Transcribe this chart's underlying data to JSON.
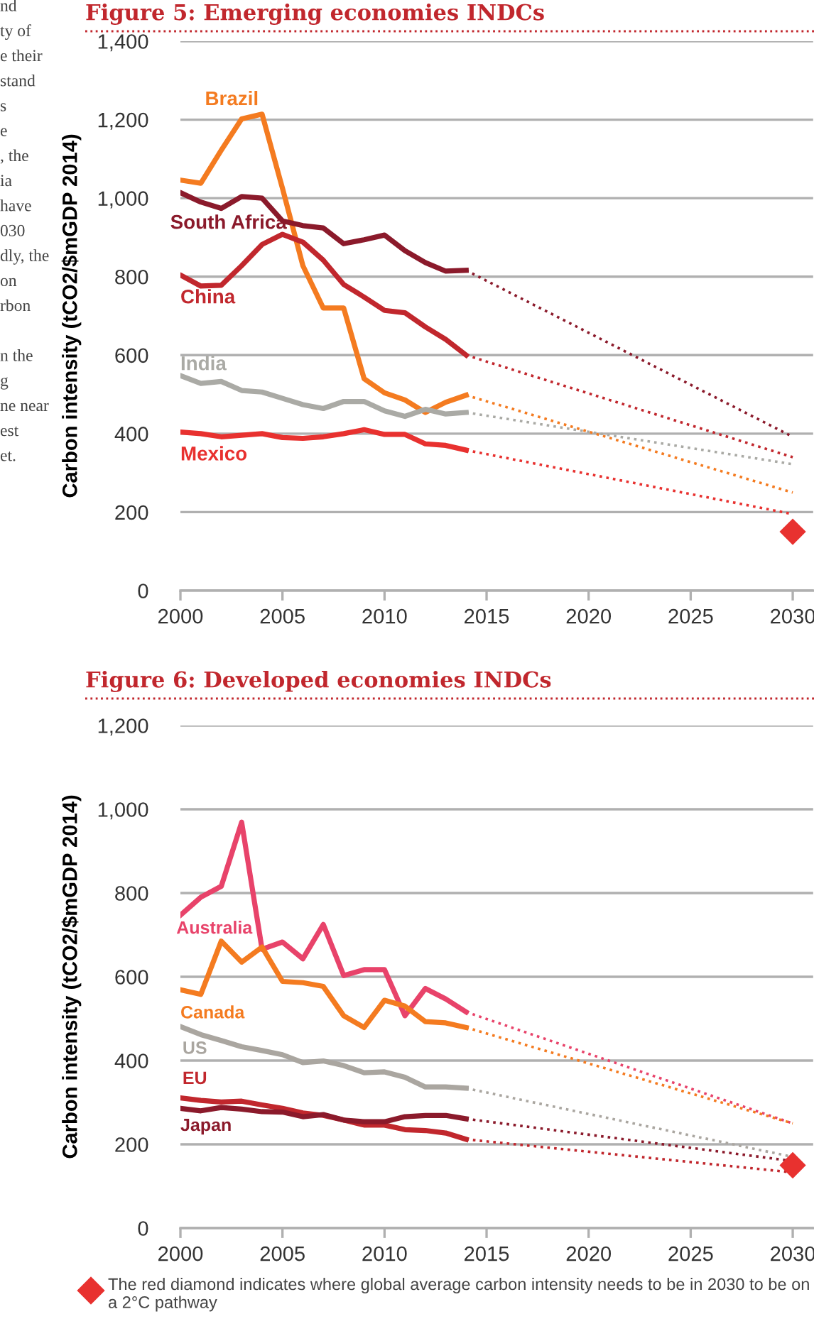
{
  "chart_data": [
    {
      "type": "line",
      "title": "Figure 5: Emerging economies INDCs",
      "ylabel": "Carbon intensity (tCO2/$mGDP 2014)",
      "x": [
        2000,
        2001,
        2002,
        2003,
        2004,
        2005,
        2006,
        2007,
        2008,
        2009,
        2010,
        2011,
        2012,
        2013,
        2014,
        2030
      ],
      "xlim": [
        2000,
        2031
      ],
      "xticks": [
        2000,
        2005,
        2010,
        2015,
        2020,
        2025,
        2030
      ],
      "ylim": [
        0,
        1400
      ],
      "yticks": [
        0,
        200,
        400,
        600,
        800,
        {
          "value": 1000,
          "label": "1,000"
        },
        {
          "value": 1200,
          "label": "1,200"
        },
        {
          "value": 1400,
          "label": "1,400"
        }
      ],
      "grid": "y",
      "legend": false,
      "line_style": "solid",
      "series": [
        {
          "name": "Brazil",
          "color": "#f47b20",
          "values": [
            1046,
            1038,
            1122,
            1202,
            1214,
            1025,
            828,
            720,
            720,
            540,
            504,
            486,
            454,
            480,
            498,
            null
          ]
        },
        {
          "name": "South Africa",
          "color": "#8b1a2b",
          "values": [
            1014,
            990,
            974,
            1004,
            1000,
            942,
            930,
            924,
            884,
            894,
            906,
            866,
            836,
            814,
            816,
            null
          ]
        },
        {
          "name": "China",
          "color": "#c1272d",
          "values": [
            804,
            776,
            778,
            828,
            882,
            908,
            888,
            842,
            780,
            748,
            714,
            708,
            672,
            640,
            600,
            null
          ]
        },
        {
          "name": "India",
          "color": "#aaaaa5",
          "values": [
            548,
            528,
            533,
            510,
            506,
            490,
            474,
            464,
            482,
            482,
            458,
            444,
            462,
            450,
            454,
            null
          ]
        },
        {
          "name": "Mexico",
          "color": "#e8312f",
          "values": [
            404,
            400,
            392,
            396,
            400,
            390,
            388,
            392,
            400,
            410,
            398,
            398,
            374,
            370,
            358,
            null
          ]
        },
        {
          "color": "#f47b20",
          "line_style": "dotted",
          "values": [
            null,
            null,
            null,
            null,
            null,
            null,
            null,
            null,
            null,
            null,
            null,
            null,
            null,
            null,
            498,
            250
          ]
        },
        {
          "color": "#8b1a2b",
          "line_style": "dotted",
          "values": [
            null,
            null,
            null,
            null,
            null,
            null,
            null,
            null,
            null,
            null,
            null,
            null,
            null,
            null,
            816,
            392
          ]
        },
        {
          "color": "#c1272d",
          "line_style": "dotted",
          "values": [
            null,
            null,
            null,
            null,
            null,
            null,
            null,
            null,
            null,
            null,
            null,
            null,
            null,
            null,
            600,
            340
          ]
        },
        {
          "color": "#aaaaa5",
          "line_style": "dotted",
          "values": [
            null,
            null,
            null,
            null,
            null,
            null,
            null,
            null,
            null,
            null,
            null,
            null,
            null,
            null,
            454,
            322
          ]
        },
        {
          "color": "#e8312f",
          "line_style": "dotted",
          "values": [
            null,
            null,
            null,
            null,
            null,
            null,
            null,
            null,
            null,
            null,
            null,
            null,
            null,
            null,
            358,
            195
          ]
        },
        {
          "type": "scatter",
          "marker": "diamond",
          "color": "#e8312f",
          "values": [
            null,
            null,
            null,
            null,
            null,
            null,
            null,
            null,
            null,
            null,
            null,
            null,
            null,
            null,
            null,
            150
          ]
        }
      ],
      "annotations": [
        "nd",
        "ty of",
        "e their",
        "stand",
        "s",
        "e",
        ", the",
        "ia",
        "have",
        "030",
        "dly, the",
        "on",
        "rbon",
        "n the",
        "g",
        "ne near",
        "est",
        "et."
      ]
    },
    {
      "type": "line",
      "title": "Figure 6: Developed economies INDCs",
      "ylabel": "Carbon intensity (tCO2/$mGDP 2014)",
      "x": [
        2000,
        2001,
        2002,
        2003,
        2004,
        2005,
        2006,
        2007,
        2008,
        2009,
        2010,
        2011,
        2012,
        2013,
        2014,
        2030
      ],
      "xlim": [
        2000,
        2031
      ],
      "xticks": [
        2000,
        2005,
        2010,
        2015,
        2020,
        2025,
        2030
      ],
      "ylim": [
        0,
        1200
      ],
      "yticks": [
        0,
        200,
        400,
        600,
        800,
        {
          "value": 1000,
          "label": "1,000"
        },
        {
          "value": 1200,
          "label": "1,200"
        }
      ],
      "grid": "y",
      "legend": false,
      "line_style": "solid",
      "series": [
        {
          "name": "Australia",
          "color": "#e8436a",
          "values": [
            747,
            790,
            816,
            969,
            666,
            683,
            643,
            725,
            603,
            617,
            617,
            507,
            572,
            547,
            516,
            null
          ]
        },
        {
          "name": "Canada",
          "color": "#f47b20",
          "values": [
            569,
            558,
            685,
            635,
            671,
            589,
            586,
            577,
            507,
            479,
            544,
            530,
            493,
            490,
            479,
            null
          ]
        },
        {
          "name": "US",
          "color": "#aaa6a0",
          "values": [
            481,
            462,
            448,
            433,
            424,
            414,
            395,
            399,
            388,
            371,
            373,
            360,
            337,
            337,
            334,
            null
          ]
        },
        {
          "name": "EU",
          "color": "#c1272d",
          "values": [
            311,
            305,
            301,
            303,
            294,
            286,
            275,
            269,
            258,
            246,
            246,
            235,
            233,
            227,
            212,
            null
          ]
        },
        {
          "name": "Japan",
          "color": "#8b1a2b",
          "values": [
            286,
            280,
            288,
            284,
            278,
            277,
            266,
            271,
            258,
            254,
            254,
            266,
            269,
            269,
            261,
            null
          ]
        },
        {
          "color": "#e8436a",
          "line_style": "dotted",
          "values": [
            null,
            null,
            null,
            null,
            null,
            null,
            null,
            null,
            null,
            null,
            null,
            null,
            null,
            null,
            516,
            250
          ]
        },
        {
          "color": "#f47b20",
          "line_style": "dotted",
          "values": [
            null,
            null,
            null,
            null,
            null,
            null,
            null,
            null,
            null,
            null,
            null,
            null,
            null,
            null,
            479,
            250
          ]
        },
        {
          "color": "#aaa6a0",
          "line_style": "dotted",
          "values": [
            null,
            null,
            null,
            null,
            null,
            null,
            null,
            null,
            null,
            null,
            null,
            null,
            null,
            null,
            334,
            170
          ]
        },
        {
          "color": "#c1272d",
          "line_style": "dotted",
          "values": [
            null,
            null,
            null,
            null,
            null,
            null,
            null,
            null,
            null,
            null,
            null,
            null,
            null,
            null,
            212,
            133
          ]
        },
        {
          "color": "#8b1a2b",
          "line_style": "dotted",
          "values": [
            null,
            null,
            null,
            null,
            null,
            null,
            null,
            null,
            null,
            null,
            null,
            null,
            null,
            null,
            261,
            160
          ]
        },
        {
          "type": "scatter",
          "marker": "diamond",
          "color": "#e8312f",
          "values": [
            null,
            null,
            null,
            null,
            null,
            null,
            null,
            null,
            null,
            null,
            null,
            null,
            null,
            null,
            null,
            150
          ]
        }
      ],
      "annotations": [
        "The red diamond indicates where global average carbon intensity needs to be in 2030 to be on a 2°C pathway"
      ]
    }
  ]
}
